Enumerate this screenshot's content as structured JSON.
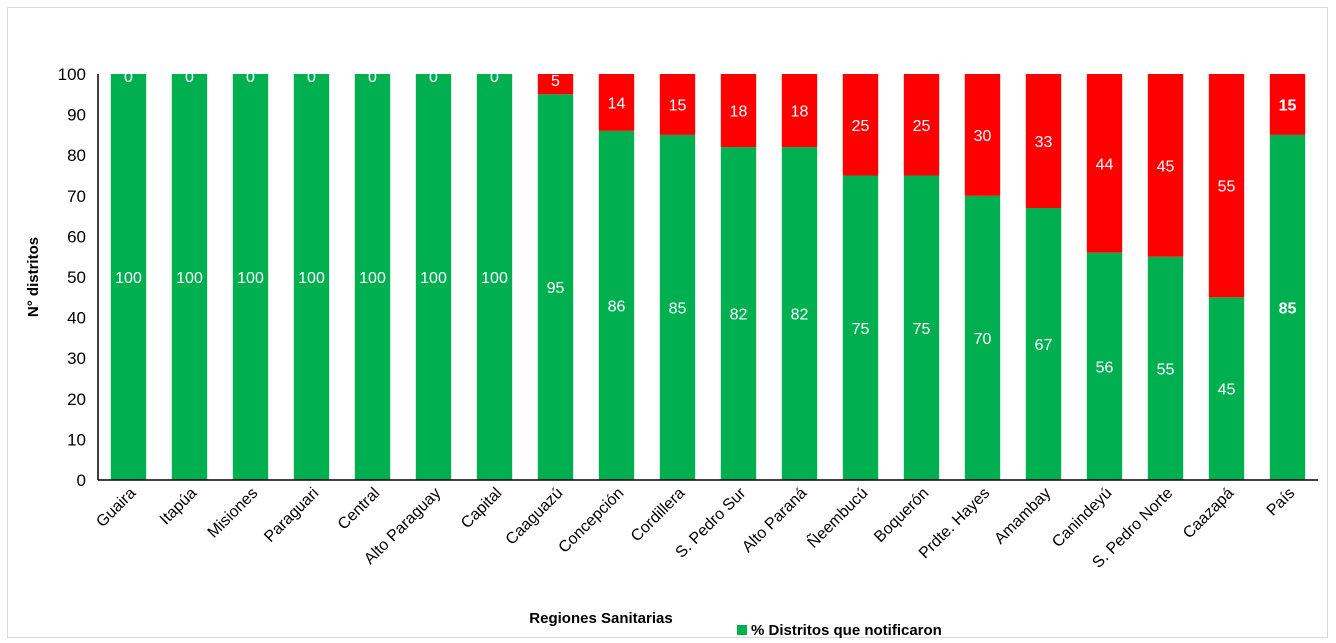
{
  "chart_data": {
    "type": "bar",
    "stacked": true,
    "title": "",
    "xlabel": "Regiones Sanitarias",
    "ylabel": "N° distritos",
    "ylim": [
      0,
      100
    ],
    "yticks": [
      0,
      10,
      20,
      30,
      40,
      50,
      60,
      70,
      80,
      90,
      100
    ],
    "grid": false,
    "legend_position": "bottom",
    "categories": [
      "Guaira",
      "Itapúa",
      "Misiones",
      "Paraguari",
      "Central",
      "Alto Paraguay",
      "Capital",
      "Caaguazú",
      "Concepción",
      "Cordillera",
      "S. Pedro Sur",
      "Alto Paraná",
      "Ñeembucú",
      "Boquerón",
      "Prdte. Hayes",
      "Amambay",
      "Canindeyú",
      "S. Pedro Norte",
      "Caazapá",
      "País"
    ],
    "series": [
      {
        "name": "% Distritos que notificaron",
        "color": "#00b050",
        "values": [
          100,
          100,
          100,
          100,
          100,
          100,
          100,
          95,
          86,
          85,
          82,
          82,
          75,
          75,
          70,
          67,
          56,
          55,
          45,
          85
        ]
      },
      {
        "color": "#ff0000",
        "values": [
          0,
          0,
          0,
          0,
          0,
          0,
          0,
          5,
          14,
          15,
          18,
          18,
          25,
          25,
          30,
          33,
          44,
          45,
          55,
          15
        ]
      }
    ],
    "bold_categories": [
      "País"
    ]
  }
}
